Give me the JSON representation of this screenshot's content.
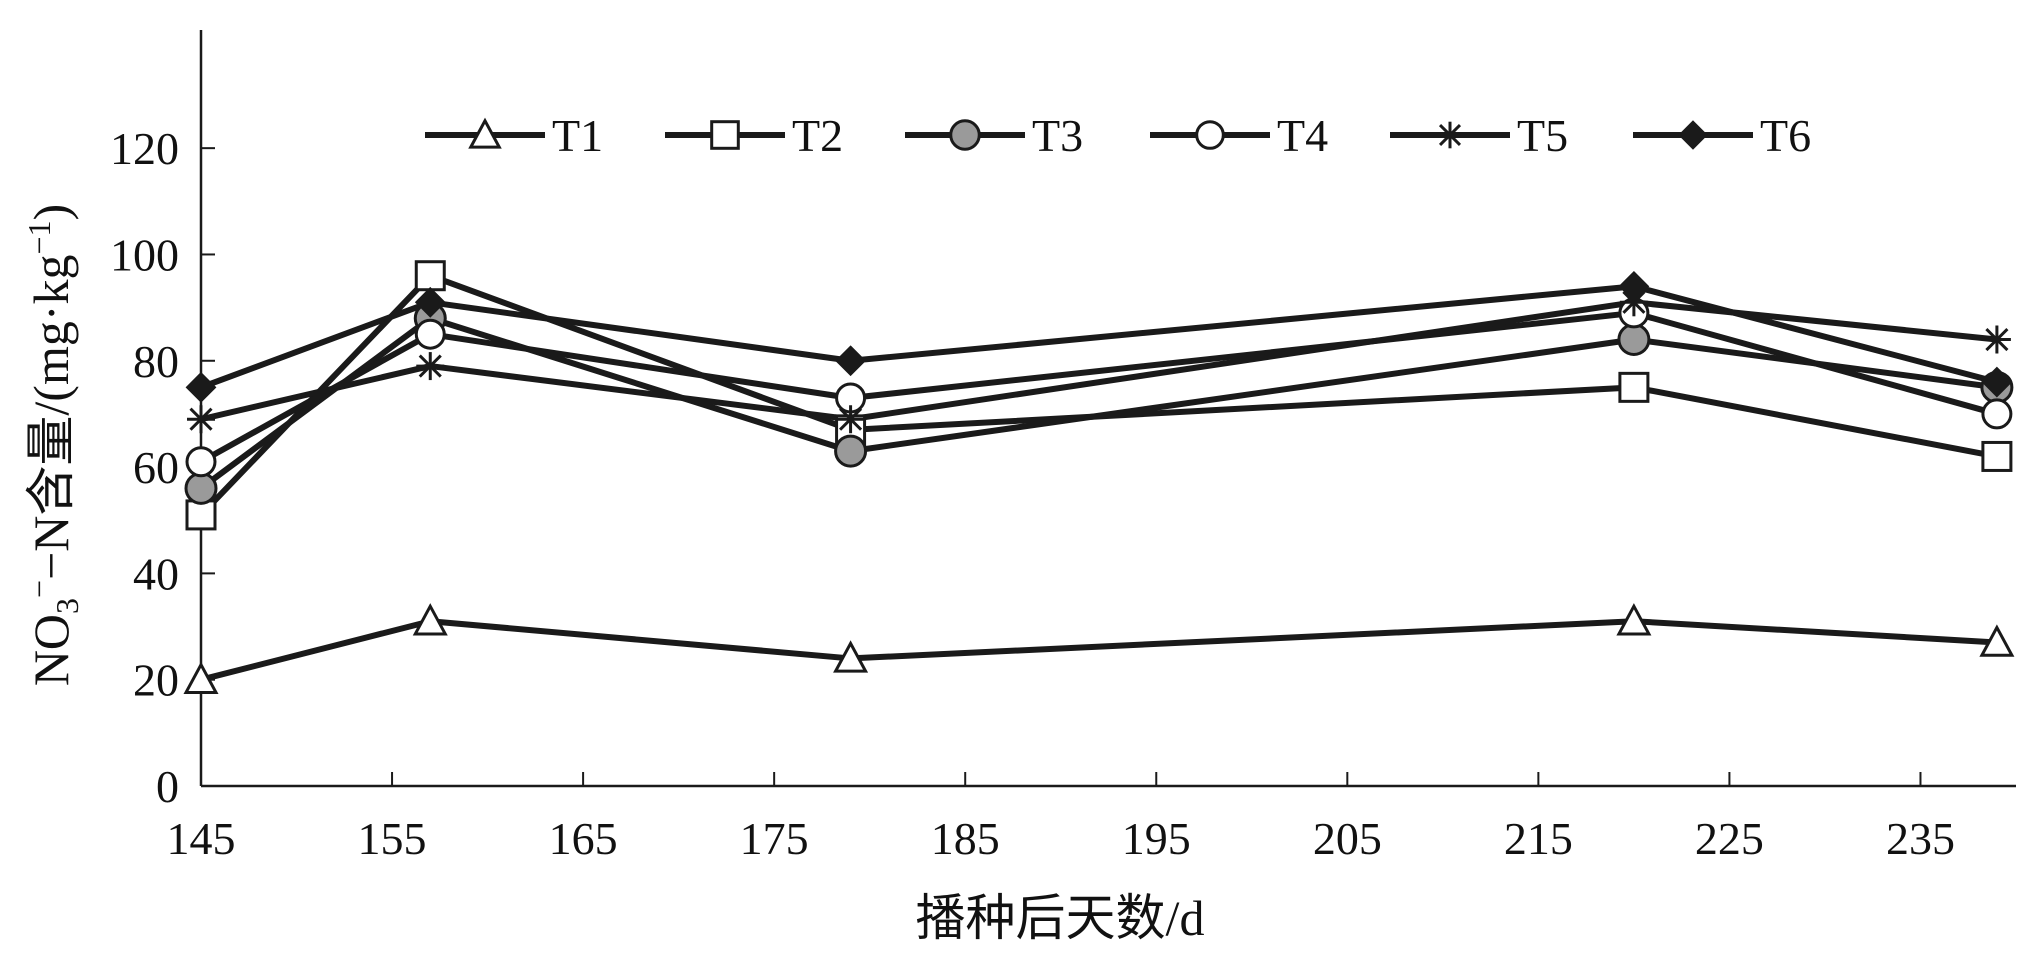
{
  "chart_data": {
    "type": "line",
    "title": "",
    "xlabel": "播种后天数/d",
    "ylabel": {
      "parts": [
        "NO",
        "3",
        "−",
        "−N含量/(mg·kg",
        "−1",
        ")"
      ]
    },
    "x_ticks": [
      "145",
      "155",
      "165",
      "175",
      "185",
      "195",
      "205",
      "215",
      "225",
      "235"
    ],
    "y_ticks": [
      "0",
      "20",
      "40",
      "60",
      "80",
      "100",
      "120"
    ],
    "xlim": [
      145,
      240
    ],
    "ylim": [
      0,
      130
    ],
    "x": [
      145,
      157,
      179,
      220,
      239
    ],
    "grid": false,
    "legend_position": "top",
    "series": [
      {
        "name": "T1",
        "marker": "triangle",
        "values": [
          20,
          31,
          24,
          31,
          27
        ]
      },
      {
        "name": "T2",
        "marker": "square",
        "values": [
          51,
          96,
          67,
          75,
          62
        ]
      },
      {
        "name": "T3",
        "marker": "circle-gray",
        "values": [
          56,
          88,
          63,
          84,
          75
        ]
      },
      {
        "name": "T4",
        "marker": "circle-open",
        "values": [
          61,
          85,
          73,
          89,
          70
        ]
      },
      {
        "name": "T5",
        "marker": "asterisk",
        "values": [
          69,
          79,
          69,
          91,
          84
        ]
      },
      {
        "name": "T6",
        "marker": "diamond",
        "values": [
          75,
          91,
          80,
          94,
          76
        ]
      }
    ],
    "colors": {
      "line": "#1a1a1a",
      "gray_fill": "#9a9a9a"
    }
  }
}
